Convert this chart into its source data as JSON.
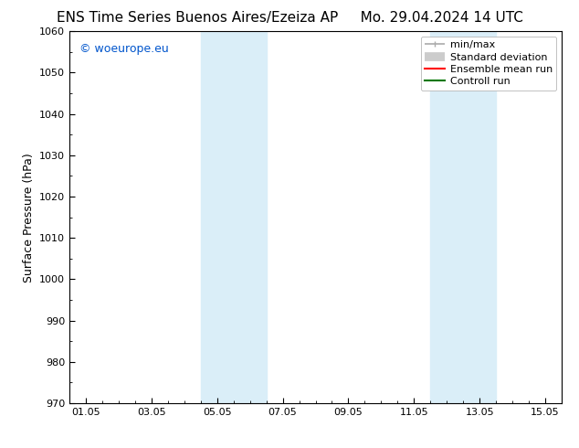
{
  "title_left": "ENS Time Series Buenos Aires/Ezeiza AP",
  "title_right": "Mo. 29.04.2024 14 UTC",
  "ylabel": "Surface Pressure (hPa)",
  "ylim": [
    970,
    1060
  ],
  "yticks": [
    970,
    980,
    990,
    1000,
    1010,
    1020,
    1030,
    1040,
    1050,
    1060
  ],
  "xtick_labels": [
    "01.05",
    "03.05",
    "05.05",
    "07.05",
    "09.05",
    "11.05",
    "13.05",
    "15.05"
  ],
  "xtick_positions": [
    0,
    2,
    4,
    6,
    8,
    10,
    12,
    14
  ],
  "xlim": [
    -0.5,
    14.5
  ],
  "shaded_bands": [
    {
      "x_start": 3.5,
      "x_end": 5.5
    },
    {
      "x_start": 10.5,
      "x_end": 12.5
    }
  ],
  "shade_color": "#daeef8",
  "background_color": "#ffffff",
  "watermark_text": "© woeurope.eu",
  "watermark_color": "#0055cc",
  "legend_items": [
    {
      "label": "min/max",
      "color": "#aaaaaa",
      "lw": 1.2
    },
    {
      "label": "Standard deviation",
      "color": "#cccccc",
      "lw": 7
    },
    {
      "label": "Ensemble mean run",
      "color": "#ff0000",
      "lw": 1.5
    },
    {
      "label": "Controll run",
      "color": "#007700",
      "lw": 1.5
    }
  ],
  "title_fontsize": 11,
  "ylabel_fontsize": 9,
  "tick_fontsize": 8,
  "watermark_fontsize": 9,
  "legend_fontsize": 8
}
